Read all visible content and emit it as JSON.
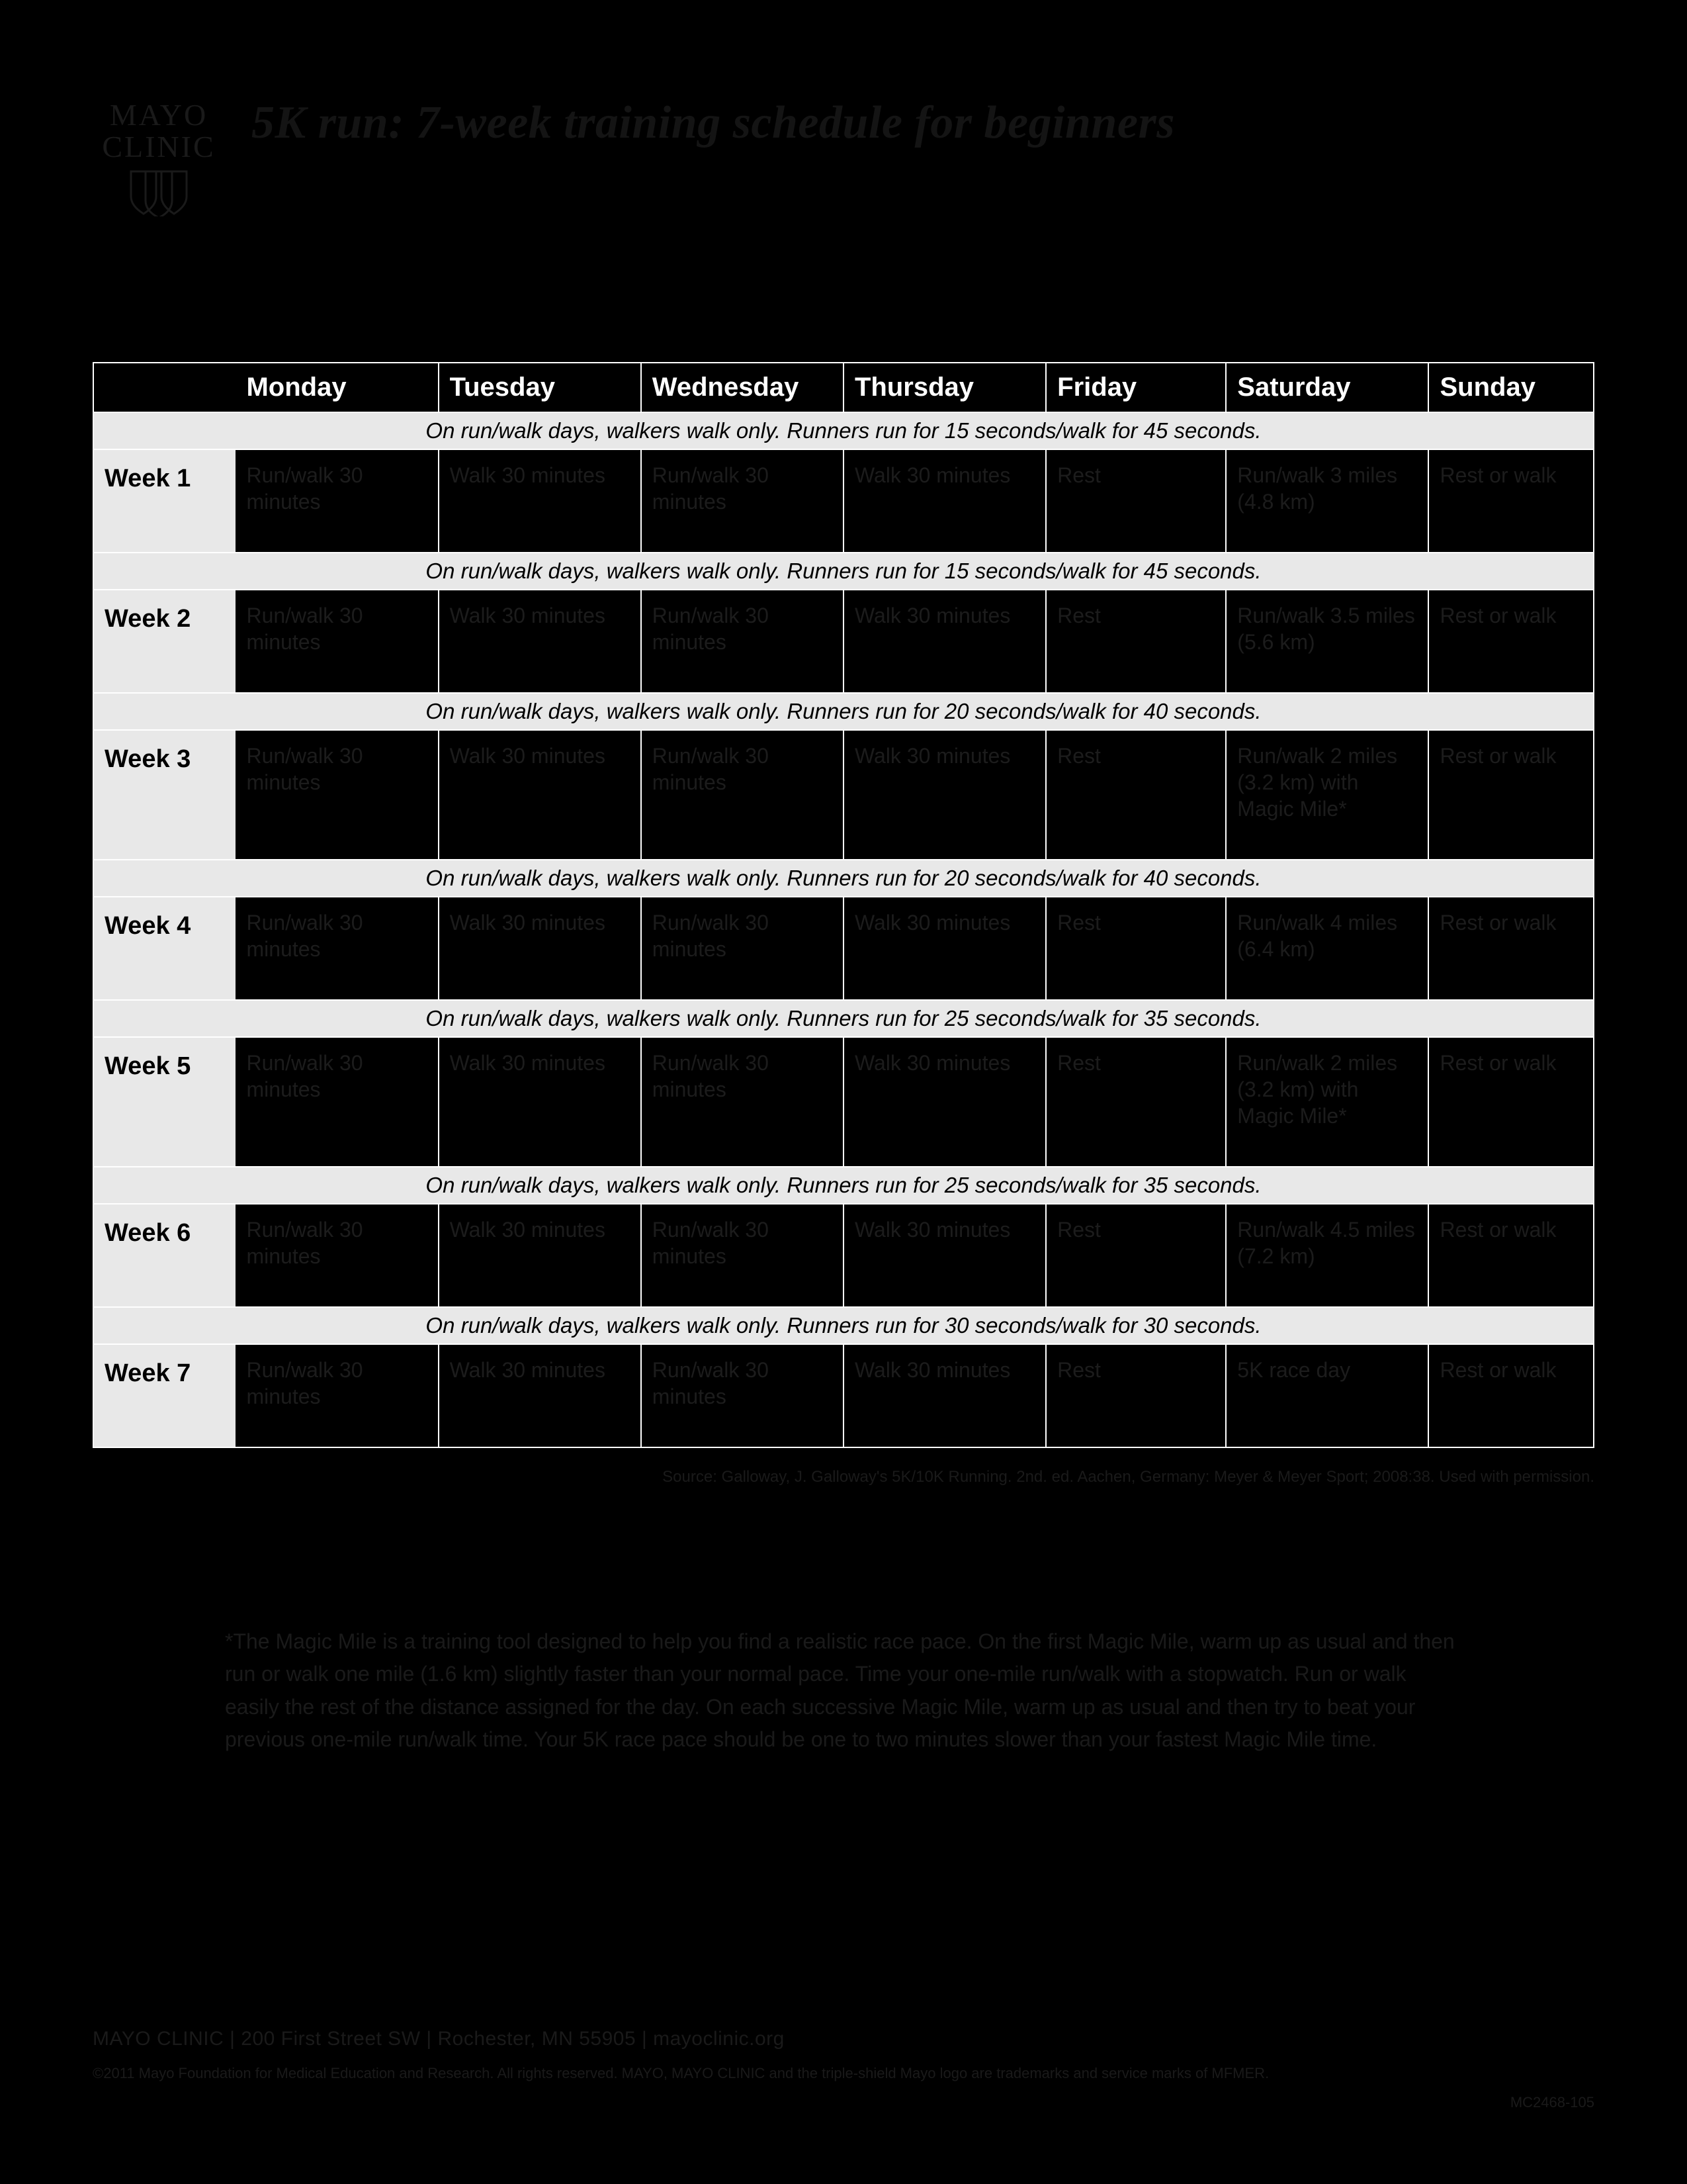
{
  "logo": {
    "line1": "MAYO",
    "line2": "CLINIC"
  },
  "title": "5K run: 7-week training schedule for beginners",
  "days": [
    "Monday",
    "Tuesday",
    "Wednesday",
    "Thursday",
    "Friday",
    "Saturday",
    "Sunday"
  ],
  "weeks": [
    {
      "label": "Week 1",
      "note": "On run/walk days, walkers walk only. Runners run for 15 seconds/walk for 45 seconds.",
      "cells": [
        "Run/walk 30 minutes",
        "Walk 30 minutes",
        "Run/walk 30 minutes",
        "Walk 30 minutes",
        "Rest",
        "Run/walk 3 miles (4.8 km)",
        "Rest or walk"
      ]
    },
    {
      "label": "Week 2",
      "note": "On run/walk days, walkers walk only. Runners run for 15 seconds/walk for 45 seconds.",
      "cells": [
        "Run/walk 30 minutes",
        "Walk 30 minutes",
        "Run/walk 30 minutes",
        "Walk 30 minutes",
        "Rest",
        "Run/walk 3.5 miles (5.6 km)",
        "Rest or walk"
      ]
    },
    {
      "label": "Week 3",
      "note": "On run/walk days, walkers walk only. Runners run for 20 seconds/walk for 40 seconds.",
      "cells": [
        "Run/walk 30 minutes",
        "Walk 30 minutes",
        "Run/walk 30 minutes",
        "Walk 30 minutes",
        "Rest",
        "Run/walk 2 miles (3.2 km) with Magic Mile*",
        "Rest or walk"
      ]
    },
    {
      "label": "Week 4",
      "note": "On run/walk days, walkers walk only. Runners run for 20 seconds/walk for 40 seconds.",
      "cells": [
        "Run/walk 30 minutes",
        "Walk 30 minutes",
        "Run/walk 30 minutes",
        "Walk 30 minutes",
        "Rest",
        "Run/walk 4 miles (6.4 km)",
        "Rest or walk"
      ]
    },
    {
      "label": "Week 5",
      "note": "On run/walk days, walkers walk only. Runners run for 25 seconds/walk for 35 seconds.",
      "cells": [
        "Run/walk 30 minutes",
        "Walk 30 minutes",
        "Run/walk 30 minutes",
        "Walk 30 minutes",
        "Rest",
        "Run/walk 2 miles (3.2 km) with Magic Mile*",
        "Rest or walk"
      ]
    },
    {
      "label": "Week 6",
      "note": "On run/walk days, walkers walk only. Runners run for 25 seconds/walk for 35 seconds.",
      "cells": [
        "Run/walk 30 minutes",
        "Walk 30 minutes",
        "Run/walk 30 minutes",
        "Walk 30 minutes",
        "Rest",
        "Run/walk 4.5 miles (7.2 km)",
        "Rest or walk"
      ]
    },
    {
      "label": "Week 7",
      "note": "On run/walk days, walkers walk only. Runners run for 30 seconds/walk for 30 seconds.",
      "cells": [
        "Run/walk 30 minutes",
        "Walk 30 minutes",
        "Run/walk 30 minutes",
        "Walk 30 minutes",
        "Rest",
        "5K race day",
        "Rest or walk"
      ]
    }
  ],
  "source": "Source: Galloway, J. Galloway's 5K/10K Running. 2nd. ed. Aachen, Germany: Meyer & Meyer Sport; 2008:38. Used with permission.",
  "magic_mile": "*The Magic Mile is a training tool designed to help you find a realistic race pace. On the first Magic Mile, warm up as usual and then run or walk one mile (1.6 km) slightly faster than your normal pace. Time your one-mile run/walk with a stopwatch. Run or walk easily the rest of the distance assigned for the day. On each successive Magic Mile, warm up as usual and then try to beat your previous one-mile run/walk time. Your 5K race pace should be one to two minutes slower than your fastest Magic Mile time.",
  "footer": {
    "address": "MAYO CLINIC  |  200 First Street SW  |  Rochester, MN 55905  |  mayoclinic.org",
    "copyright": "©2011 Mayo Foundation for Medical Education and Research. All rights reserved. MAYO, MAYO CLINIC and the triple-shield Mayo logo are trademarks and service marks of MFMER.",
    "doc_id": "MC2468-105"
  },
  "style": {
    "page_bg": "#000000",
    "header_row_bg": "#000000",
    "header_row_text": "#ffffff",
    "note_row_bg": "#e8e8e8",
    "note_row_text": "#000000",
    "week_label_bg": "#e8e8e8",
    "week_label_text": "#000000",
    "day_cell_bg": "#000000",
    "day_cell_text": "#1c1c1c",
    "dim_text": "#1a1a1a",
    "border_color": "#ffffff",
    "title_font": "serif-italic",
    "header_fontsize_pt": 30,
    "body_fontsize_pt": 24
  }
}
